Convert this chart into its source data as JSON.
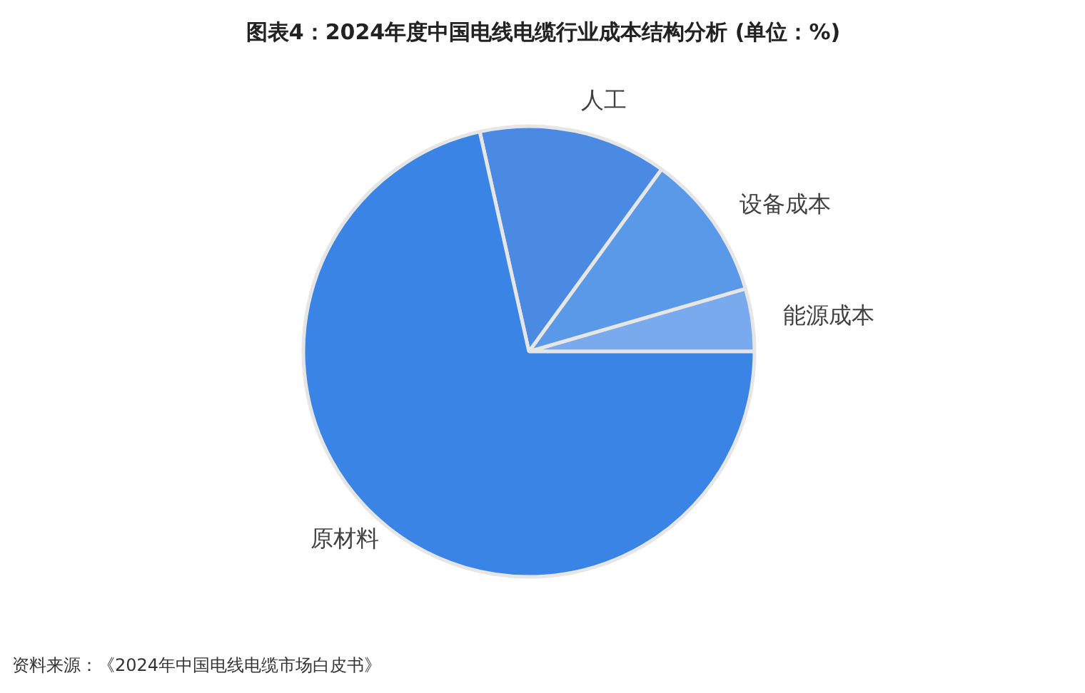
{
  "chart_data": {
    "type": "pie",
    "title": "图表4：2024年度中国电线电缆行业成本结构分析 (单位：%)",
    "categories": [
      "能源成本",
      "设备成本",
      "人工",
      "原材料"
    ],
    "values": [
      4.5,
      10.5,
      13.5,
      71.5
    ],
    "colors": [
      "#7aaaee",
      "#5a98e8",
      "#4a8ae2",
      "#3a84e6"
    ],
    "annotations": [
      "资料来源：《2024年中国电线电缆市场白皮书》"
    ]
  }
}
